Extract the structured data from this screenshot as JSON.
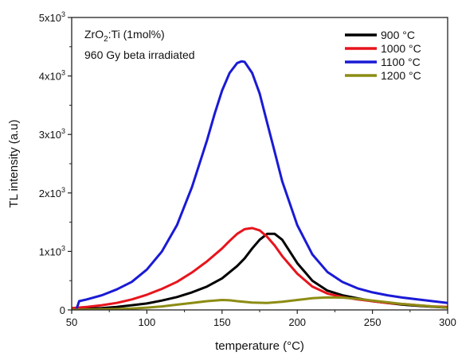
{
  "chart_data": {
    "type": "line",
    "title": "",
    "xlabel": "temperature (°C)",
    "ylabel": "TL intensity (a.u)",
    "xlim": [
      50,
      300
    ],
    "ylim": [
      0,
      5000
    ],
    "x_ticks": [
      50,
      100,
      150,
      200,
      250,
      300
    ],
    "y_ticks": [
      {
        "value": 0,
        "base": "0",
        "exp": ""
      },
      {
        "value": 1000,
        "base": "1x10",
        "exp": "3"
      },
      {
        "value": 2000,
        "base": "2x10",
        "exp": "3"
      },
      {
        "value": 3000,
        "base": "3x10",
        "exp": "3"
      },
      {
        "value": 4000,
        "base": "4x10",
        "exp": "3"
      },
      {
        "value": 5000,
        "base": "5x10",
        "exp": "3"
      }
    ],
    "grid": false,
    "legend_position": "top-right",
    "annotations": {
      "sample": {
        "prefix": "ZrO",
        "sub": "2",
        "suffix": ":Ti (1mol%)"
      },
      "dose": "960 Gy beta irradiated"
    },
    "series": [
      {
        "name": "900 °C",
        "color": "#000000",
        "x": [
          50,
          60,
          70,
          80,
          90,
          100,
          110,
          120,
          130,
          140,
          150,
          160,
          165,
          170,
          175,
          180,
          185,
          190,
          195,
          200,
          210,
          220,
          230,
          240,
          250,
          260,
          270,
          280,
          290,
          300
        ],
        "y": [
          10,
          20,
          30,
          50,
          80,
          110,
          160,
          220,
          300,
          400,
          540,
          750,
          880,
          1050,
          1200,
          1300,
          1300,
          1200,
          1000,
          800,
          500,
          330,
          250,
          200,
          150,
          120,
          90,
          70,
          55,
          40
        ]
      },
      {
        "name": "1000 °C",
        "color": "#e8141c",
        "x": [
          50,
          60,
          70,
          80,
          90,
          100,
          110,
          120,
          130,
          140,
          150,
          155,
          160,
          165,
          170,
          175,
          180,
          185,
          190,
          200,
          210,
          220,
          230,
          240,
          250,
          260,
          270,
          280,
          290,
          300
        ],
        "y": [
          30,
          50,
          80,
          120,
          180,
          260,
          360,
          480,
          640,
          830,
          1050,
          1180,
          1300,
          1380,
          1400,
          1360,
          1250,
          1100,
          920,
          620,
          400,
          280,
          220,
          180,
          150,
          120,
          100,
          80,
          60,
          50
        ]
      },
      {
        "name": "1100 °C",
        "color": "#1a1ad6",
        "x": [
          53,
          55,
          60,
          70,
          80,
          90,
          100,
          110,
          120,
          130,
          140,
          145,
          150,
          155,
          160,
          163,
          165,
          170,
          175,
          180,
          185,
          190,
          200,
          210,
          220,
          230,
          240,
          250,
          260,
          270,
          280,
          290,
          300
        ],
        "y": [
          0,
          150,
          180,
          250,
          350,
          480,
          690,
          1000,
          1450,
          2100,
          2900,
          3350,
          3750,
          4050,
          4220,
          4250,
          4240,
          4050,
          3700,
          3200,
          2700,
          2200,
          1450,
          950,
          650,
          480,
          370,
          300,
          250,
          210,
          180,
          150,
          120
        ]
      },
      {
        "name": "1200 °C",
        "color": "#8c8c14",
        "x": [
          50,
          60,
          70,
          80,
          90,
          100,
          110,
          120,
          130,
          140,
          150,
          155,
          160,
          170,
          180,
          190,
          200,
          210,
          220,
          230,
          240,
          250,
          260,
          270,
          280,
          290,
          300
        ],
        "y": [
          0,
          5,
          10,
          15,
          25,
          40,
          60,
          90,
          120,
          150,
          170,
          165,
          150,
          125,
          120,
          140,
          170,
          200,
          215,
          210,
          190,
          160,
          130,
          100,
          80,
          60,
          40
        ]
      }
    ]
  }
}
